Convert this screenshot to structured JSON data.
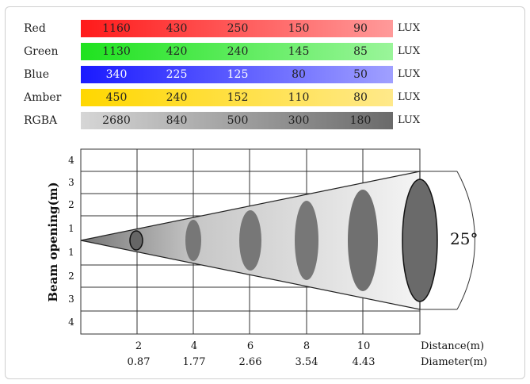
{
  "lux_table": {
    "rows": [
      {
        "name": "Red",
        "values": [
          "1160",
          "430",
          "250",
          "150",
          "90"
        ],
        "unit": "LUX",
        "from": "#ff1a1a",
        "to": "#ff9a9a"
      },
      {
        "name": "Green",
        "values": [
          "1130",
          "420",
          "240",
          "145",
          "85"
        ],
        "unit": "LUX",
        "from": "#1fe21f",
        "to": "#9af59a"
      },
      {
        "name": "Blue",
        "values": [
          "340",
          "225",
          "125",
          "80",
          "50"
        ],
        "unit": "LUX",
        "from": "#1a1aff",
        "to": "#a0a0ff"
      },
      {
        "name": "Amber",
        "values": [
          "450",
          "240",
          "152",
          "110",
          "80"
        ],
        "unit": "LUX",
        "from": "#ffd700",
        "to": "#ffe98a"
      },
      {
        "name": "RGBA",
        "values": [
          "2680",
          "840",
          "500",
          "300",
          "180"
        ],
        "unit": "LUX",
        "from": "#d6d6d6",
        "to": "#6a6a6a"
      }
    ]
  },
  "beam_chart": {
    "ylabel": "Beam opening(m)",
    "y_ticks_upper": [
      "4",
      "3",
      "2",
      "1"
    ],
    "y_ticks_lower": [
      "1",
      "2",
      "3",
      "4"
    ],
    "distance_label": "Distance(m)",
    "diameter_label": "Diameter(m)",
    "distances": [
      "2",
      "4",
      "6",
      "8",
      "10"
    ],
    "diameters": [
      "0.87",
      "1.77",
      "2.66",
      "3.54",
      "4.43"
    ],
    "angle_label": "25°"
  },
  "chart_data": {
    "type": "table",
    "columns": [
      "2",
      "4",
      "6",
      "8",
      "10"
    ],
    "rows": [
      {
        "name": "Red",
        "values": [
          1160,
          430,
          250,
          150,
          90
        ]
      },
      {
        "name": "Green",
        "values": [
          1130,
          420,
          240,
          145,
          85
        ]
      },
      {
        "name": "Blue",
        "values": [
          340,
          225,
          125,
          80,
          50
        ]
      },
      {
        "name": "Amber",
        "values": [
          450,
          240,
          152,
          110,
          80
        ]
      },
      {
        "name": "RGBA",
        "values": [
          2680,
          840,
          500,
          300,
          180
        ]
      }
    ],
    "unit": "LUX",
    "distance": [
      2,
      4,
      6,
      8,
      10
    ],
    "diameter": [
      0.87,
      1.77,
      2.66,
      3.54,
      4.43
    ],
    "beam_angle_deg": 25
  }
}
